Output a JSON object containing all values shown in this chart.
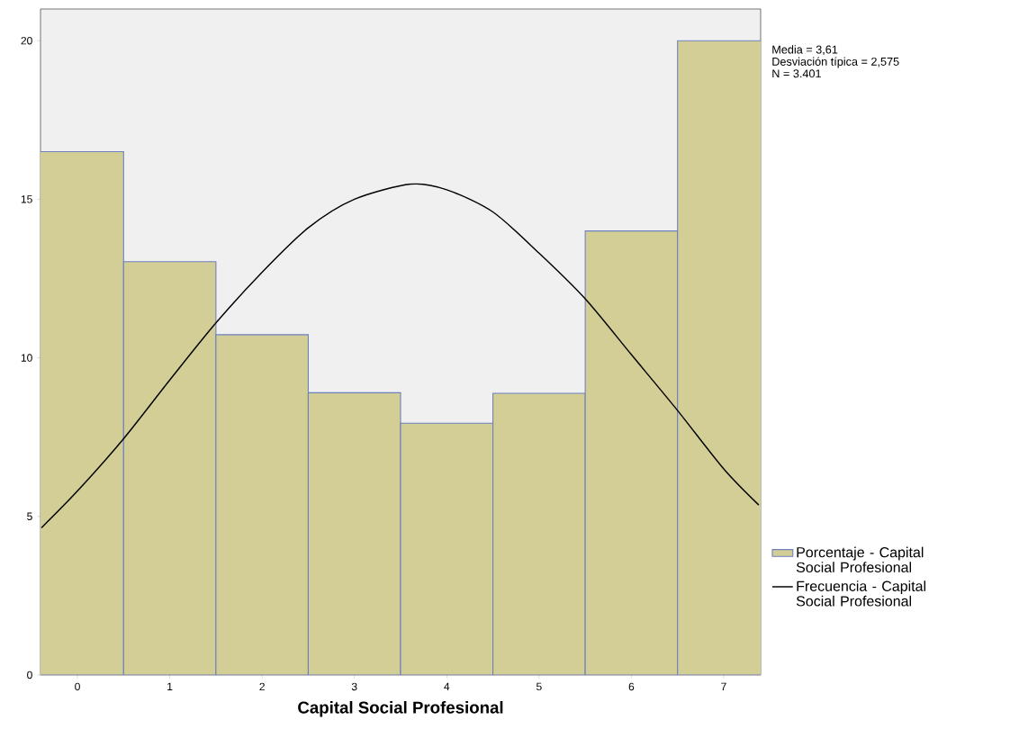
{
  "chart_data": {
    "type": "bar",
    "xlabel": "Capital Social Profesional",
    "x": [
      0,
      1,
      2,
      3,
      4,
      5,
      6,
      7
    ],
    "series": [
      {
        "name": "Porcentaje - Capital Social Profesional",
        "color": "#d3ce96",
        "values": [
          16.5,
          13.03,
          10.73,
          8.9,
          7.94,
          8.88,
          14.0,
          20.0
        ]
      },
      {
        "name": "Frecuencia - Capital Social Profesional",
        "type": "line",
        "color": "#000000",
        "x": [
          -0.39,
          0,
          0.5,
          1,
          1.5,
          2,
          2.5,
          3,
          3.61,
          4,
          4.5,
          5,
          5.5,
          6,
          6.5,
          7,
          7.38
        ],
        "values": [
          4.64,
          5.8,
          7.45,
          9.3,
          11.1,
          12.7,
          14.1,
          15.0,
          15.48,
          15.3,
          14.6,
          13.3,
          11.86,
          10.1,
          8.34,
          6.5,
          5.36
        ]
      }
    ],
    "xlim": [
      -0.4,
      7.4
    ],
    "xticks": [
      0,
      1,
      2,
      3,
      4,
      5,
      6,
      7
    ],
    "ylim": [
      0,
      21
    ],
    "yticks": [
      0,
      5,
      10,
      15,
      20
    ],
    "annotations": [
      "Media = 3,61",
      "Desviación típica = 2,575",
      "N = 3.401"
    ],
    "legend": "right",
    "grid": false
  }
}
